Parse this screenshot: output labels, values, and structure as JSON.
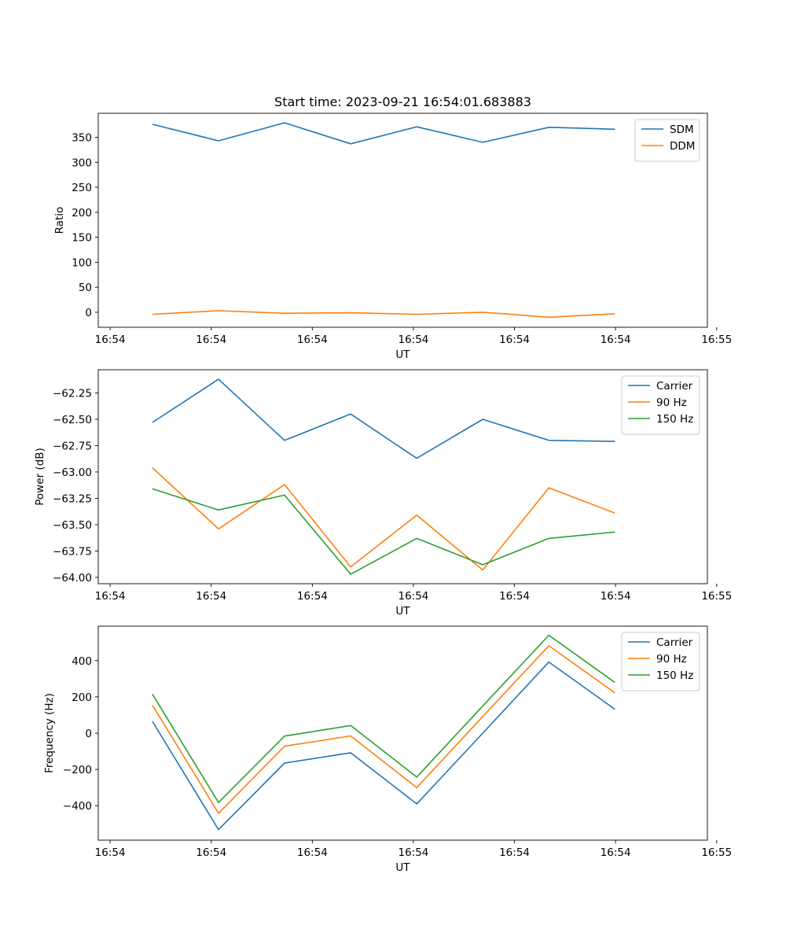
{
  "chart_data": [
    {
      "type": "line",
      "title": "Start time: 2023-09-21 16:54:01.683883",
      "xlabel": "UT",
      "ylabel": "Ratio",
      "x": [
        1,
        2,
        3,
        4,
        5,
        6,
        7,
        8
      ],
      "xlim": [
        0.18,
        9.4
      ],
      "ylim": [
        -30,
        398
      ],
      "x_ticks": [
        0.36,
        1.89,
        3.42,
        4.95,
        6.48,
        8.01,
        9.54
      ],
      "x_tick_labels": [
        "16:54",
        "16:54",
        "16:54",
        "16:54",
        "16:54",
        "16:54",
        "16:55"
      ],
      "y_ticks": [
        0,
        50,
        100,
        150,
        200,
        250,
        300,
        350
      ],
      "y_tick_labels": [
        "0",
        "50",
        "100",
        "150",
        "200",
        "250",
        "300",
        "350"
      ],
      "series": [
        {
          "name": "SDM",
          "color": "#1f77b4",
          "values": [
            376,
            343,
            379,
            337,
            371,
            340,
            370,
            366
          ]
        },
        {
          "name": "DDM",
          "color": "#ff7f0e",
          "values": [
            -4,
            3,
            -2,
            -1,
            -4,
            0,
            -10,
            -3
          ]
        }
      ]
    },
    {
      "type": "line",
      "title": "",
      "xlabel": "UT",
      "ylabel": "Power (dB)",
      "x": [
        1,
        2,
        3,
        4,
        5,
        6,
        7,
        8
      ],
      "xlim": [
        0.18,
        9.4
      ],
      "ylim": [
        -64.06,
        -62.03
      ],
      "x_ticks": [
        0.36,
        1.89,
        3.42,
        4.95,
        6.48,
        8.01,
        9.54
      ],
      "x_tick_labels": [
        "16:54",
        "16:54",
        "16:54",
        "16:54",
        "16:54",
        "16:54",
        "16:55"
      ],
      "y_ticks": [
        -64.0,
        -63.75,
        -63.5,
        -63.25,
        -63.0,
        -62.75,
        -62.5,
        -62.25
      ],
      "y_tick_labels": [
        "−64.00",
        "−63.75",
        "−63.50",
        "−63.25",
        "−63.00",
        "−62.75",
        "−62.50",
        "−62.25"
      ],
      "series": [
        {
          "name": "Carrier",
          "color": "#1f77b4",
          "values": [
            -62.53,
            -62.12,
            -62.7,
            -62.45,
            -62.87,
            -62.5,
            -62.7,
            -62.71
          ]
        },
        {
          "name": "90 Hz",
          "color": "#ff7f0e",
          "values": [
            -62.96,
            -63.54,
            -63.12,
            -63.9,
            -63.41,
            -63.93,
            -63.15,
            -63.39
          ]
        },
        {
          "name": "150 Hz",
          "color": "#2ca02c",
          "values": [
            -63.16,
            -63.36,
            -63.22,
            -63.97,
            -63.63,
            -63.88,
            -63.63,
            -63.57
          ]
        }
      ]
    },
    {
      "type": "line",
      "title": "",
      "xlabel": "UT",
      "ylabel": "Frequency (Hz)",
      "x": [
        1,
        2,
        3,
        4,
        5,
        6,
        7,
        8
      ],
      "xlim": [
        0.18,
        9.4
      ],
      "ylim": [
        -590,
        590
      ],
      "x_ticks": [
        0.36,
        1.89,
        3.42,
        4.95,
        6.48,
        8.01,
        9.54
      ],
      "x_tick_labels": [
        "16:54",
        "16:54",
        "16:54",
        "16:54",
        "16:54",
        "16:54",
        "16:55"
      ],
      "y_ticks": [
        -400,
        -200,
        0,
        200,
        400
      ],
      "y_tick_labels": [
        "−400",
        "−200",
        "0",
        "200",
        "400"
      ],
      "series": [
        {
          "name": "Carrier",
          "color": "#1f77b4",
          "values": [
            65,
            -532,
            -165,
            -108,
            -390,
            0,
            392,
            132
          ]
        },
        {
          "name": "90 Hz",
          "color": "#ff7f0e",
          "values": [
            155,
            -442,
            -72,
            -15,
            -300,
            92,
            482,
            222
          ]
        },
        {
          "name": "150 Hz",
          "color": "#2ca02c",
          "values": [
            215,
            -382,
            -16,
            42,
            -242,
            150,
            540,
            280
          ]
        }
      ]
    }
  ]
}
